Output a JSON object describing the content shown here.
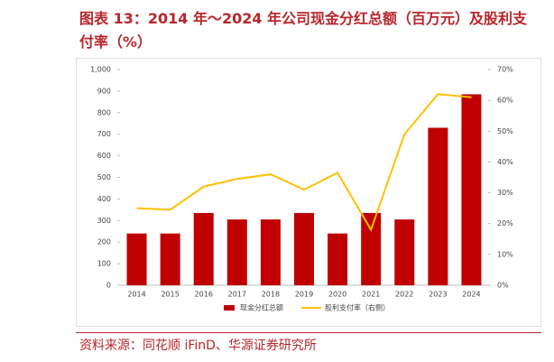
{
  "chart_data": {
    "type": "bar",
    "title": "图表 13：2014 年～2024 年公司现金分红总额（百万元）及股利支付率（%）",
    "source": "资料来源：同花顺 iFinD、华源证券研究所",
    "categories": [
      "2014",
      "2015",
      "2016",
      "2017",
      "2018",
      "2019",
      "2020",
      "2021",
      "2022",
      "2023",
      "2024"
    ],
    "series": [
      {
        "name": "现金分红总额",
        "type": "bar",
        "color": "#C00000",
        "values": [
          240,
          240,
          335,
          305,
          305,
          335,
          240,
          335,
          305,
          730,
          885
        ]
      },
      {
        "name": "股利支付率（右侧）",
        "type": "line",
        "axis": "y2",
        "color": "#FFC000",
        "values": [
          25,
          24.5,
          32,
          34.5,
          36,
          31,
          36.5,
          18,
          49,
          62,
          61
        ]
      }
    ],
    "ylim": [
      0,
      1000
    ],
    "yticks": [
      0,
      100,
      200,
      300,
      400,
      500,
      600,
      700,
      800,
      900,
      {
        "value": 1000,
        "label": "1,000"
      }
    ],
    "y2lim": [
      0,
      70
    ],
    "y2ticks": [
      {
        "value": 0,
        "label": "0%"
      },
      {
        "value": 10,
        "label": "10%"
      },
      {
        "value": 20,
        "label": "20%"
      },
      {
        "value": 30,
        "label": "30%"
      },
      {
        "value": 40,
        "label": "40%"
      },
      {
        "value": 50,
        "label": "50%"
      },
      {
        "value": 60,
        "label": "60%"
      },
      {
        "value": 70,
        "label": "70%"
      }
    ],
    "grid": false
  }
}
